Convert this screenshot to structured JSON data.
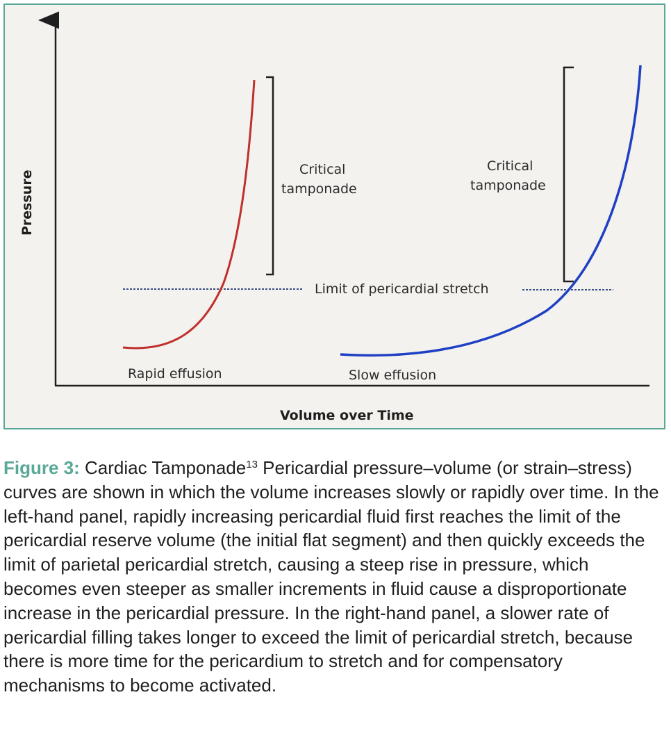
{
  "figure": {
    "y_axis_label": "Pressure",
    "x_axis_label": "Volume over Time",
    "limit_line_label": "Limit of pericardial stretch",
    "left_panel": {
      "curve_label": "Rapid effusion",
      "bracket_label_line1": "Critical",
      "bracket_label_line2": "tamponade",
      "curve_color": "#c0302c"
    },
    "right_panel": {
      "curve_label": "Slow effusion",
      "bracket_label_line1": "Critical",
      "bracket_label_line2": "tamponade",
      "curve_color": "#1f3fc4"
    },
    "limit_line_color": "#3a4f86",
    "frame_color": "#5aa897"
  },
  "caption": {
    "label": "Figure 3:",
    "title": "Cardiac Tamponade",
    "ref": "13",
    "text": " Pericardial pressure–volume (or strain–stress) curves are shown in which the volume increases slowly or rapidly over time. In the left-hand panel, rapidly increasing pericardial fluid first reaches the limit of the pericardial reserve volume (the initial flat segment) and then quickly exceeds the limit of parietal pericardial stretch, causing a steep rise in pressure, which becomes even steeper as smaller increments in fluid cause a disproportionate increase in the pericardial pressure. In the right-hand panel, a slower rate of pericardial filling takes longer to exceed the limit of pericardial stretch, because there is more time for the pericardium to stretch and for compensatory mechanisms to become activated."
  }
}
